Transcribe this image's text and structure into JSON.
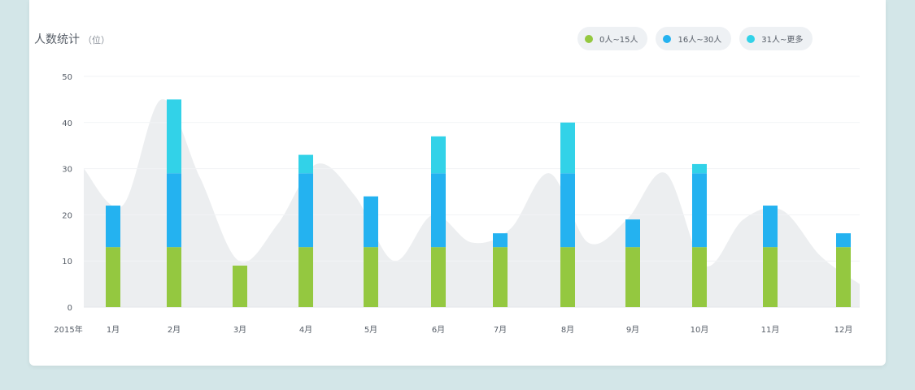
{
  "header": {
    "title": "人数统计",
    "unit": "（位）"
  },
  "legend": [
    {
      "label": "0人~15人",
      "color": "#94c840"
    },
    {
      "label": "16人~30人",
      "color": "#24b2f0"
    },
    {
      "label": "31人~更多",
      "color": "#32d2e8"
    }
  ],
  "chart_data": {
    "type": "bar",
    "stacked": true,
    "x_prefix_label": "2015年",
    "categories": [
      "1月",
      "2月",
      "3月",
      "4月",
      "5月",
      "6月",
      "7月",
      "8月",
      "9月",
      "10月",
      "11月",
      "12月"
    ],
    "series": [
      {
        "name": "0人~15人",
        "color": "#94c840",
        "values": [
          13,
          13,
          9,
          13,
          13,
          13,
          13,
          13,
          13,
          13,
          13,
          13
        ]
      },
      {
        "name": "16人~30人",
        "color": "#24b2f0",
        "values": [
          9,
          16,
          0,
          16,
          11,
          16,
          3,
          16,
          6,
          16,
          9,
          3
        ]
      },
      {
        "name": "31人~更多",
        "color": "#32d2e8",
        "values": [
          0,
          16,
          0,
          4,
          0,
          8,
          0,
          11,
          0,
          2,
          0,
          0
        ]
      }
    ],
    "background_area": {
      "type": "area",
      "color": "#eceef0",
      "values": [
        30,
        22,
        45,
        28,
        10,
        18,
        31,
        24,
        10,
        20,
        14,
        17,
        29,
        14,
        19,
        29,
        9,
        19,
        21,
        11,
        5
      ]
    },
    "ylim": [
      0,
      50
    ],
    "yticks": [
      0,
      10,
      20,
      30,
      40,
      50
    ],
    "grid": true,
    "legend_position": "top-right"
  }
}
